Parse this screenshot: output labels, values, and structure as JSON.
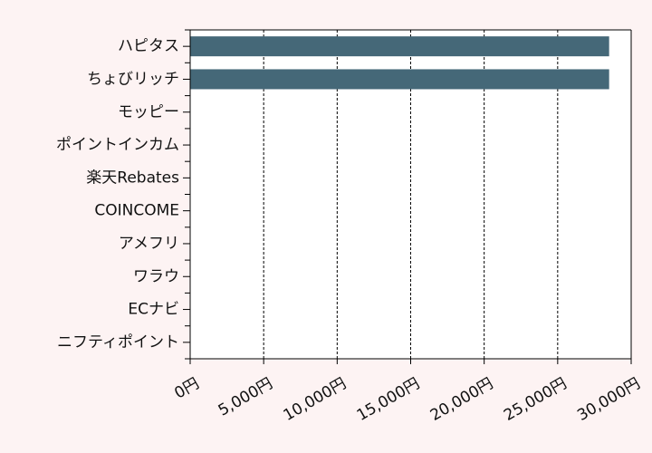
{
  "chart_data": {
    "type": "bar",
    "orientation": "horizontal",
    "categories": [
      "ハピタス",
      "ちょびリッチ",
      "モッピー",
      "ポイントインカム",
      "楽天Rebates",
      "COINCOME",
      "アメフリ",
      "ワラウ",
      "ECナビ",
      "ニフティポイント"
    ],
    "values": [
      28500,
      28500,
      0,
      0,
      0,
      0,
      0,
      0,
      0,
      0
    ],
    "xlim": [
      0,
      30000
    ],
    "x_ticks": [
      0,
      5000,
      10000,
      15000,
      20000,
      25000,
      30000
    ],
    "x_tick_labels": [
      "0円",
      "5,000円",
      "10,000円",
      "15,000円",
      "20,000円",
      "25,000円",
      "30,000円"
    ],
    "grid": "vertical-dashed",
    "bar_color": "#456878",
    "background_color": "#fdf3f3",
    "plot_background_color": "#ffffff"
  }
}
